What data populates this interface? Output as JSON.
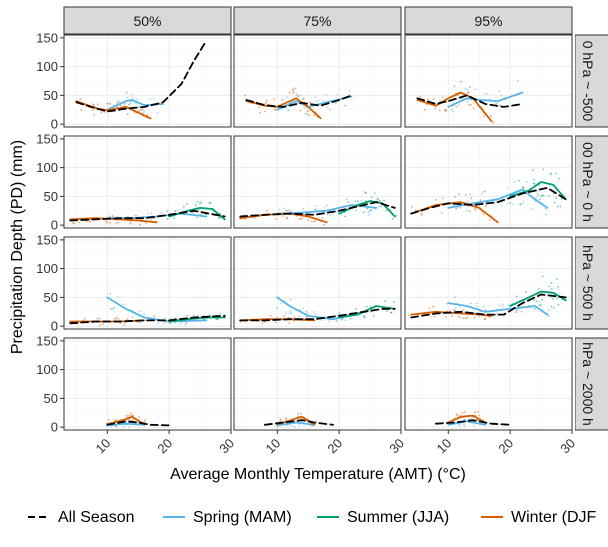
{
  "chart_data": {
    "type": "scatter",
    "xlabel": "Average Monthly Temperature (AMT) (°C)",
    "ylabel": "Precipitation Depth (PD) (mm)",
    "xlim": [
      3,
      30
    ],
    "ylim": [
      -5,
      155
    ],
    "x_ticks": [
      10,
      20,
      30
    ],
    "y_ticks": [
      0,
      50,
      100,
      150
    ],
    "grid": true,
    "legend_position": "bottom",
    "facet_columns": [
      "50%",
      "75%",
      "95%"
    ],
    "facet_rows": [
      "0 hPa ~ -500",
      "00 hPa ~ 0 h",
      "hPa ~ 500 h",
      "hPa ~ 2000 h"
    ],
    "series": [
      {
        "name": "All Season",
        "color": "#000000",
        "dash": "long-dash"
      },
      {
        "name": "Spring (MAM)",
        "color": "#56B4E9",
        "dash": "solid"
      },
      {
        "name": "Summer (JJA)",
        "color": "#009E73",
        "dash": "solid"
      },
      {
        "name": "Winter (DJF",
        "color": "#D55E00",
        "dash": "solid"
      }
    ],
    "panels": [
      {
        "row": 0,
        "col": 0,
        "curves": {
          "All Season": [
            [
              5,
              38
            ],
            [
              8,
              28
            ],
            [
              10,
              22
            ],
            [
              13,
              27
            ],
            [
              16,
              30
            ],
            [
              19,
              38
            ],
            [
              22,
              70
            ],
            [
              24,
              110
            ],
            [
              26,
              145
            ]
          ],
          "Spring (MAM)": [
            [
              10,
              25
            ],
            [
              13,
              40
            ],
            [
              14,
              42
            ],
            [
              16,
              33
            ],
            [
              19,
              35
            ]
          ],
          "Summer (JJA)": [],
          "Winter (DJF": [
            [
              5,
              40
            ],
            [
              8,
              28
            ],
            [
              10,
              24
            ],
            [
              13,
              30
            ],
            [
              15,
              20
            ],
            [
              17,
              10
            ]
          ]
        }
      },
      {
        "row": 0,
        "col": 1,
        "curves": {
          "All Season": [
            [
              5,
              42
            ],
            [
              8,
              33
            ],
            [
              11,
              30
            ],
            [
              14,
              37
            ],
            [
              17,
              32
            ],
            [
              20,
              42
            ],
            [
              22,
              50
            ]
          ],
          "Spring (MAM)": [
            [
              10,
              25
            ],
            [
              13,
              40
            ],
            [
              15,
              30
            ],
            [
              18,
              38
            ],
            [
              22,
              48
            ]
          ],
          "Summer (JJA)": [],
          "Winter (DJF": [
            [
              5,
              40
            ],
            [
              8,
              32
            ],
            [
              10,
              30
            ],
            [
              13,
              45
            ],
            [
              15,
              30
            ],
            [
              17,
              10
            ]
          ]
        }
      },
      {
        "row": 0,
        "col": 2,
        "curves": {
          "All Season": [
            [
              5,
              45
            ],
            [
              8,
              35
            ],
            [
              10,
              40
            ],
            [
              13,
              50
            ],
            [
              16,
              35
            ],
            [
              19,
              30
            ],
            [
              22,
              35
            ]
          ],
          "Spring (MAM)": [
            [
              10,
              30
            ],
            [
              13,
              45
            ],
            [
              15,
              42
            ],
            [
              18,
              40
            ],
            [
              22,
              55
            ]
          ],
          "Summer (JJA)": [],
          "Winter (DJF": [
            [
              5,
              42
            ],
            [
              8,
              32
            ],
            [
              10,
              45
            ],
            [
              12,
              55
            ],
            [
              14,
              45
            ],
            [
              17,
              5
            ]
          ]
        }
      },
      {
        "row": 1,
        "col": 0,
        "curves": {
          "All Season": [
            [
              4,
              8
            ],
            [
              8,
              10
            ],
            [
              12,
              12
            ],
            [
              16,
              12
            ],
            [
              20,
              18
            ],
            [
              24,
              25
            ],
            [
              29,
              15
            ]
          ],
          "Spring (MAM)": [
            [
              10,
              12
            ],
            [
              14,
              12
            ],
            [
              18,
              15
            ],
            [
              22,
              20
            ],
            [
              26,
              15
            ]
          ],
          "Summer (JJA)": [
            [
              20,
              15
            ],
            [
              23,
              25
            ],
            [
              25,
              30
            ],
            [
              27,
              28
            ],
            [
              29,
              10
            ]
          ],
          "Winter (DJF": [
            [
              4,
              10
            ],
            [
              8,
              12
            ],
            [
              12,
              10
            ],
            [
              15,
              8
            ],
            [
              18,
              5
            ]
          ]
        }
      },
      {
        "row": 1,
        "col": 1,
        "curves": {
          "All Season": [
            [
              4,
              15
            ],
            [
              8,
              18
            ],
            [
              12,
              20
            ],
            [
              16,
              18
            ],
            [
              20,
              25
            ],
            [
              24,
              35
            ],
            [
              26,
              40
            ],
            [
              29,
              30
            ]
          ],
          "Spring (MAM)": [
            [
              10,
              20
            ],
            [
              14,
              22
            ],
            [
              18,
              25
            ],
            [
              22,
              35
            ],
            [
              26,
              30
            ]
          ],
          "Summer (JJA)": [
            [
              20,
              20
            ],
            [
              23,
              35
            ],
            [
              25,
              42
            ],
            [
              27,
              38
            ],
            [
              29,
              15
            ]
          ],
          "Winter (DJF": [
            [
              4,
              12
            ],
            [
              8,
              18
            ],
            [
              12,
              20
            ],
            [
              15,
              15
            ],
            [
              18,
              5
            ]
          ]
        }
      },
      {
        "row": 1,
        "col": 2,
        "curves": {
          "All Season": [
            [
              4,
              20
            ],
            [
              7,
              30
            ],
            [
              10,
              38
            ],
            [
              14,
              35
            ],
            [
              18,
              40
            ],
            [
              22,
              55
            ],
            [
              26,
              65
            ],
            [
              29,
              45
            ]
          ],
          "Spring (MAM)": [
            [
              10,
              30
            ],
            [
              14,
              38
            ],
            [
              18,
              45
            ],
            [
              22,
              62
            ],
            [
              24,
              45
            ],
            [
              26,
              30
            ]
          ],
          "Summer (JJA)": [
            [
              20,
              50
            ],
            [
              23,
              60
            ],
            [
              25,
              75
            ],
            [
              27,
              70
            ],
            [
              29,
              45
            ]
          ],
          "Winter (DJF": [
            [
              4,
              20
            ],
            [
              8,
              35
            ],
            [
              12,
              40
            ],
            [
              15,
              30
            ],
            [
              18,
              5
            ]
          ]
        }
      },
      {
        "row": 2,
        "col": 0,
        "curves": {
          "All Season": [
            [
              4,
              5
            ],
            [
              8,
              8
            ],
            [
              12,
              8
            ],
            [
              16,
              10
            ],
            [
              20,
              10
            ],
            [
              24,
              15
            ],
            [
              29,
              18
            ]
          ],
          "Spring (MAM)": [
            [
              10,
              50
            ],
            [
              13,
              30
            ],
            [
              16,
              15
            ],
            [
              20,
              8
            ],
            [
              26,
              10
            ]
          ],
          "Summer (JJA)": [
            [
              20,
              8
            ],
            [
              23,
              12
            ],
            [
              26,
              15
            ],
            [
              29,
              15
            ]
          ],
          "Winter (DJF": [
            [
              4,
              8
            ],
            [
              8,
              8
            ],
            [
              12,
              8
            ],
            [
              16,
              10
            ]
          ]
        }
      },
      {
        "row": 2,
        "col": 1,
        "curves": {
          "All Season": [
            [
              4,
              10
            ],
            [
              8,
              10
            ],
            [
              12,
              12
            ],
            [
              16,
              12
            ],
            [
              20,
              18
            ],
            [
              24,
              25
            ],
            [
              27,
              30
            ],
            [
              29,
              30
            ]
          ],
          "Spring (MAM)": [
            [
              10,
              50
            ],
            [
              12,
              35
            ],
            [
              15,
              18
            ],
            [
              19,
              12
            ],
            [
              24,
              25
            ]
          ],
          "Summer (JJA)": [
            [
              20,
              15
            ],
            [
              23,
              20
            ],
            [
              26,
              35
            ],
            [
              29,
              30
            ]
          ],
          "Winter (DJF": [
            [
              4,
              10
            ],
            [
              8,
              12
            ],
            [
              12,
              12
            ],
            [
              16,
              10
            ]
          ]
        }
      },
      {
        "row": 2,
        "col": 2,
        "curves": {
          "All Season": [
            [
              4,
              15
            ],
            [
              8,
              22
            ],
            [
              12,
              25
            ],
            [
              16,
              20
            ],
            [
              19,
              20
            ],
            [
              22,
              40
            ],
            [
              25,
              55
            ],
            [
              29,
              50
            ]
          ],
          "Spring (MAM)": [
            [
              10,
              40
            ],
            [
              13,
              35
            ],
            [
              16,
              25
            ],
            [
              20,
              30
            ],
            [
              24,
              35
            ],
            [
              26,
              20
            ]
          ],
          "Summer (JJA)": [
            [
              20,
              35
            ],
            [
              23,
              50
            ],
            [
              25,
              60
            ],
            [
              27,
              58
            ],
            [
              29,
              45
            ]
          ],
          "Winter (DJF": [
            [
              4,
              20
            ],
            [
              8,
              25
            ],
            [
              12,
              22
            ],
            [
              15,
              20
            ],
            [
              17,
              18
            ]
          ]
        }
      },
      {
        "row": 3,
        "col": 0,
        "curves": {
          "All Season": [
            [
              10,
              4
            ],
            [
              13,
              10
            ],
            [
              15,
              8
            ],
            [
              17,
              4
            ],
            [
              20,
              3
            ]
          ],
          "Spring (MAM)": [
            [
              10,
              3
            ],
            [
              13,
              6
            ],
            [
              16,
              4
            ]
          ],
          "Summer (JJA)": [],
          "Winter (DJF": [
            [
              10,
              5
            ],
            [
              13,
              14
            ],
            [
              14,
              18
            ],
            [
              16,
              5
            ]
          ]
        }
      },
      {
        "row": 3,
        "col": 1,
        "curves": {
          "All Season": [
            [
              8,
              4
            ],
            [
              11,
              8
            ],
            [
              14,
              12
            ],
            [
              16,
              8
            ],
            [
              19,
              4
            ]
          ],
          "Spring (MAM)": [
            [
              10,
              3
            ],
            [
              13,
              8
            ],
            [
              16,
              4
            ]
          ],
          "Summer (JJA)": [],
          "Winter (DJF": [
            [
              10,
              5
            ],
            [
              13,
              15
            ],
            [
              14,
              18
            ],
            [
              16,
              5
            ]
          ]
        }
      },
      {
        "row": 3,
        "col": 2,
        "curves": {
          "All Season": [
            [
              8,
              6
            ],
            [
              11,
              8
            ],
            [
              14,
              12
            ],
            [
              17,
              6
            ],
            [
              20,
              4
            ]
          ],
          "Spring (MAM)": [
            [
              10,
              4
            ],
            [
              13,
              10
            ],
            [
              16,
              4
            ]
          ],
          "Summer (JJA)": [],
          "Winter (DJF": [
            [
              10,
              8
            ],
            [
              12,
              18
            ],
            [
              14,
              20
            ],
            [
              16,
              8
            ]
          ]
        }
      }
    ]
  }
}
